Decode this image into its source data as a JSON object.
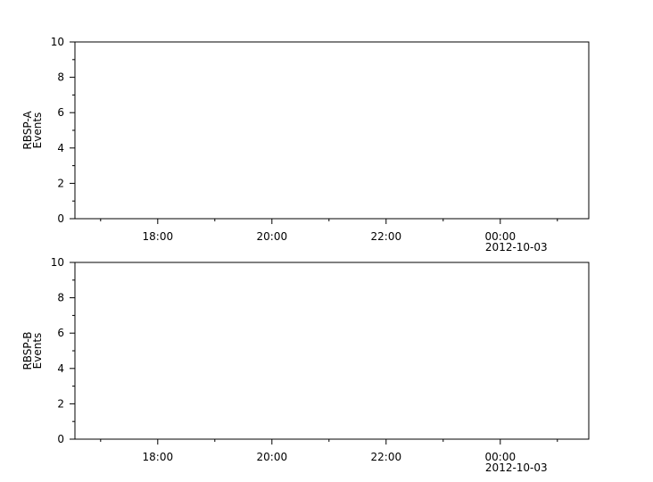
{
  "chart_data": [
    {
      "type": "line",
      "ylabel": [
        "RBSP-A",
        "Events"
      ],
      "ylim": [
        0,
        10
      ],
      "yticks": [
        "0",
        "2",
        "4",
        "6",
        "8",
        "10"
      ],
      "xlim": [
        "2012-10-02 16:33",
        "2012-10-03 01:33"
      ],
      "xticks": [
        "18:00",
        "20:00",
        "22:00",
        "00:00"
      ],
      "xtick_date": "2012-10-03",
      "series": [],
      "grid": false
    },
    {
      "type": "line",
      "ylabel": [
        "RBSP-B",
        "Events"
      ],
      "ylim": [
        0,
        10
      ],
      "yticks": [
        "0",
        "2",
        "4",
        "6",
        "8",
        "10"
      ],
      "xlim": [
        "2012-10-02 16:33",
        "2012-10-03 01:33"
      ],
      "xticks": [
        "18:00",
        "20:00",
        "22:00",
        "00:00"
      ],
      "xtick_date": "2012-10-03",
      "series": [],
      "grid": false
    }
  ]
}
